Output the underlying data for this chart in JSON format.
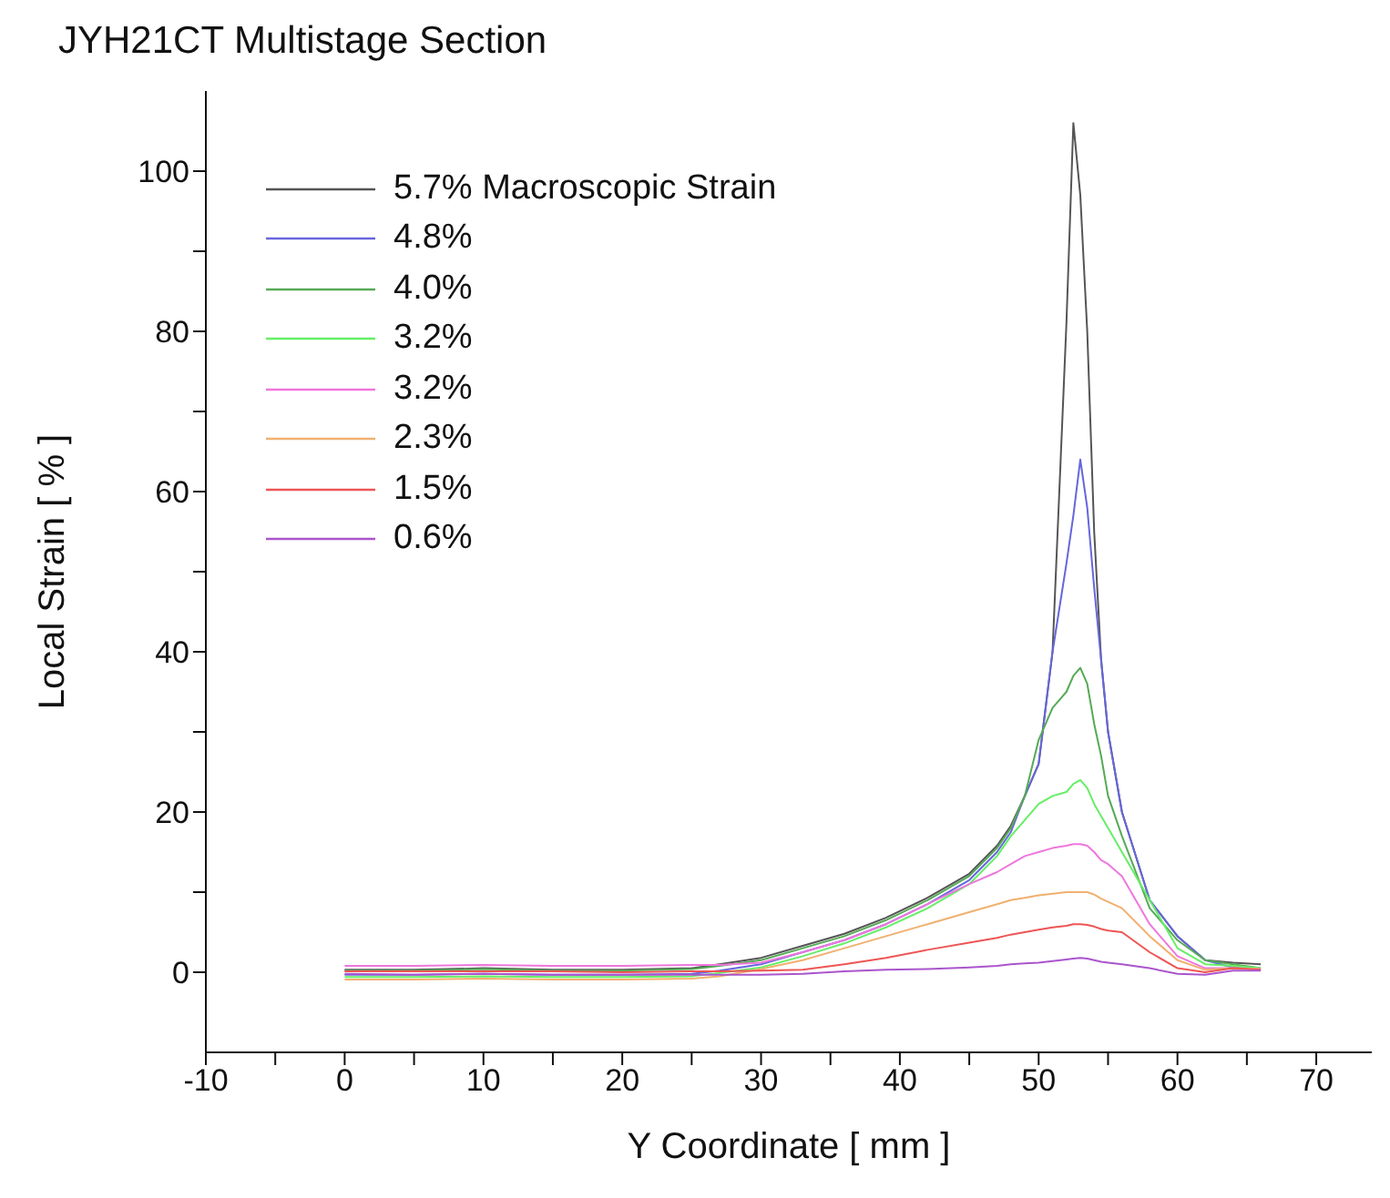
{
  "chart_data": {
    "type": "line",
    "title": "JYH21CT Multistage Section",
    "xlabel": "Y Coordinate [ mm ]",
    "ylabel": "Local Strain [ % ]",
    "x": [
      0,
      5,
      10,
      15,
      20,
      25,
      27,
      30,
      33,
      36,
      39,
      42,
      45,
      47,
      48,
      49,
      50,
      51,
      52,
      52.5,
      53,
      53.5,
      54,
      54.5,
      55,
      56,
      58,
      60,
      62,
      64,
      66
    ],
    "series": [
      {
        "name": "5.7% Macroscopic Strain",
        "color": "#555555",
        "values": [
          0.3,
          0.3,
          0.5,
          0.3,
          0.3,
          0.5,
          1,
          1.8,
          3.3,
          4.8,
          6.8,
          9.3,
          12.3,
          15.8,
          18.3,
          22,
          26,
          40,
          81,
          106,
          97,
          80,
          55,
          39,
          30,
          20,
          9,
          4.5,
          1.5,
          1.2,
          1
        ]
      },
      {
        "name": "4.8%",
        "color": "#6666dd",
        "values": [
          -0.3,
          -0.3,
          -0.2,
          -0.3,
          -0.3,
          -0.2,
          0.2,
          1,
          2.5,
          4,
          6,
          8.5,
          11.5,
          15,
          17.5,
          22,
          26,
          40,
          51,
          57,
          64,
          58,
          48,
          39,
          30,
          20,
          9,
          4.5,
          1.5,
          0.6,
          0.3
        ]
      },
      {
        "name": "4.0%",
        "color": "#55aa55",
        "values": [
          0.2,
          0.2,
          0.4,
          0.2,
          0.2,
          0.4,
          0.8,
          1.5,
          3,
          4.5,
          6.5,
          9,
          12,
          15.5,
          18,
          22,
          29,
          33,
          35,
          37,
          38,
          36,
          31,
          27,
          22,
          17,
          8,
          4,
          1.5,
          1,
          0.5
        ]
      },
      {
        "name": "3.2%",
        "color": "#66ee66",
        "values": [
          -0.6,
          -0.6,
          -0.5,
          -0.6,
          -0.6,
          -0.5,
          -0.1,
          0.6,
          2,
          3.6,
          5.6,
          8,
          11,
          14.5,
          17,
          19,
          21,
          22,
          22.5,
          23.5,
          24,
          23,
          21,
          19.5,
          18,
          15,
          9,
          3,
          1,
          0.8,
          0.5
        ]
      },
      {
        "name": "3.2%",
        "color": "#ee77dd",
        "values": [
          0.8,
          0.8,
          0.9,
          0.8,
          0.8,
          0.9,
          0.9,
          1.2,
          2.5,
          4,
          6,
          8.5,
          11,
          12.5,
          13.5,
          14.5,
          15,
          15.5,
          15.8,
          16,
          16,
          15.8,
          15,
          14,
          13.5,
          12,
          6,
          2,
          0.5,
          0.5,
          0.4
        ]
      },
      {
        "name": "2.3%",
        "color": "#f0b070",
        "values": [
          -0.9,
          -0.9,
          -0.8,
          -0.9,
          -0.9,
          -0.8,
          -0.5,
          0.4,
          1.5,
          3,
          4.5,
          6,
          7.5,
          8.5,
          9,
          9.3,
          9.6,
          9.8,
          10,
          10,
          10,
          10,
          9.7,
          9.2,
          8.8,
          8,
          4.5,
          1.5,
          0.3,
          0.5,
          0.4
        ]
      },
      {
        "name": "1.5%",
        "color": "#ee5555",
        "values": [
          0.1,
          0.1,
          0.1,
          0.1,
          0,
          0.1,
          0.1,
          0.2,
          0.3,
          1,
          1.8,
          2.8,
          3.7,
          4.3,
          4.7,
          5,
          5.3,
          5.6,
          5.8,
          6,
          6,
          5.9,
          5.7,
          5.4,
          5.2,
          5,
          2.5,
          0.5,
          0,
          0.5,
          0.3
        ]
      },
      {
        "name": "0.6%",
        "color": "#aa55cc",
        "values": [
          -0.2,
          -0.3,
          -0.2,
          -0.3,
          -0.3,
          -0.3,
          -0.3,
          -0.3,
          -0.2,
          0.1,
          0.3,
          0.4,
          0.6,
          0.8,
          1,
          1.1,
          1.2,
          1.4,
          1.6,
          1.7,
          1.8,
          1.7,
          1.5,
          1.3,
          1.2,
          1,
          0.5,
          -0.2,
          -0.3,
          0.2,
          0.2
        ]
      }
    ],
    "xlim": [
      -10,
      74
    ],
    "xticks": [
      -10,
      {
        "value": -5,
        "label": null
      },
      0,
      {
        "value": 5,
        "label": null
      },
      10,
      {
        "value": 15,
        "label": null
      },
      20,
      {
        "value": 25,
        "label": null
      },
      30,
      {
        "value": 35,
        "label": null
      },
      40,
      {
        "value": 45,
        "label": null
      },
      50,
      {
        "value": 55,
        "label": null
      },
      60,
      {
        "value": 65,
        "label": null
      },
      70
    ],
    "ylim": [
      -10,
      110
    ],
    "yticks": [
      0,
      {
        "value": 10,
        "label": null
      },
      20,
      {
        "value": 30,
        "label": null
      },
      40,
      {
        "value": 50,
        "label": null
      },
      60,
      {
        "value": 70,
        "label": null
      },
      80,
      {
        "value": 90,
        "label": null
      },
      100
    ],
    "grid": false,
    "legend": "top left"
  }
}
